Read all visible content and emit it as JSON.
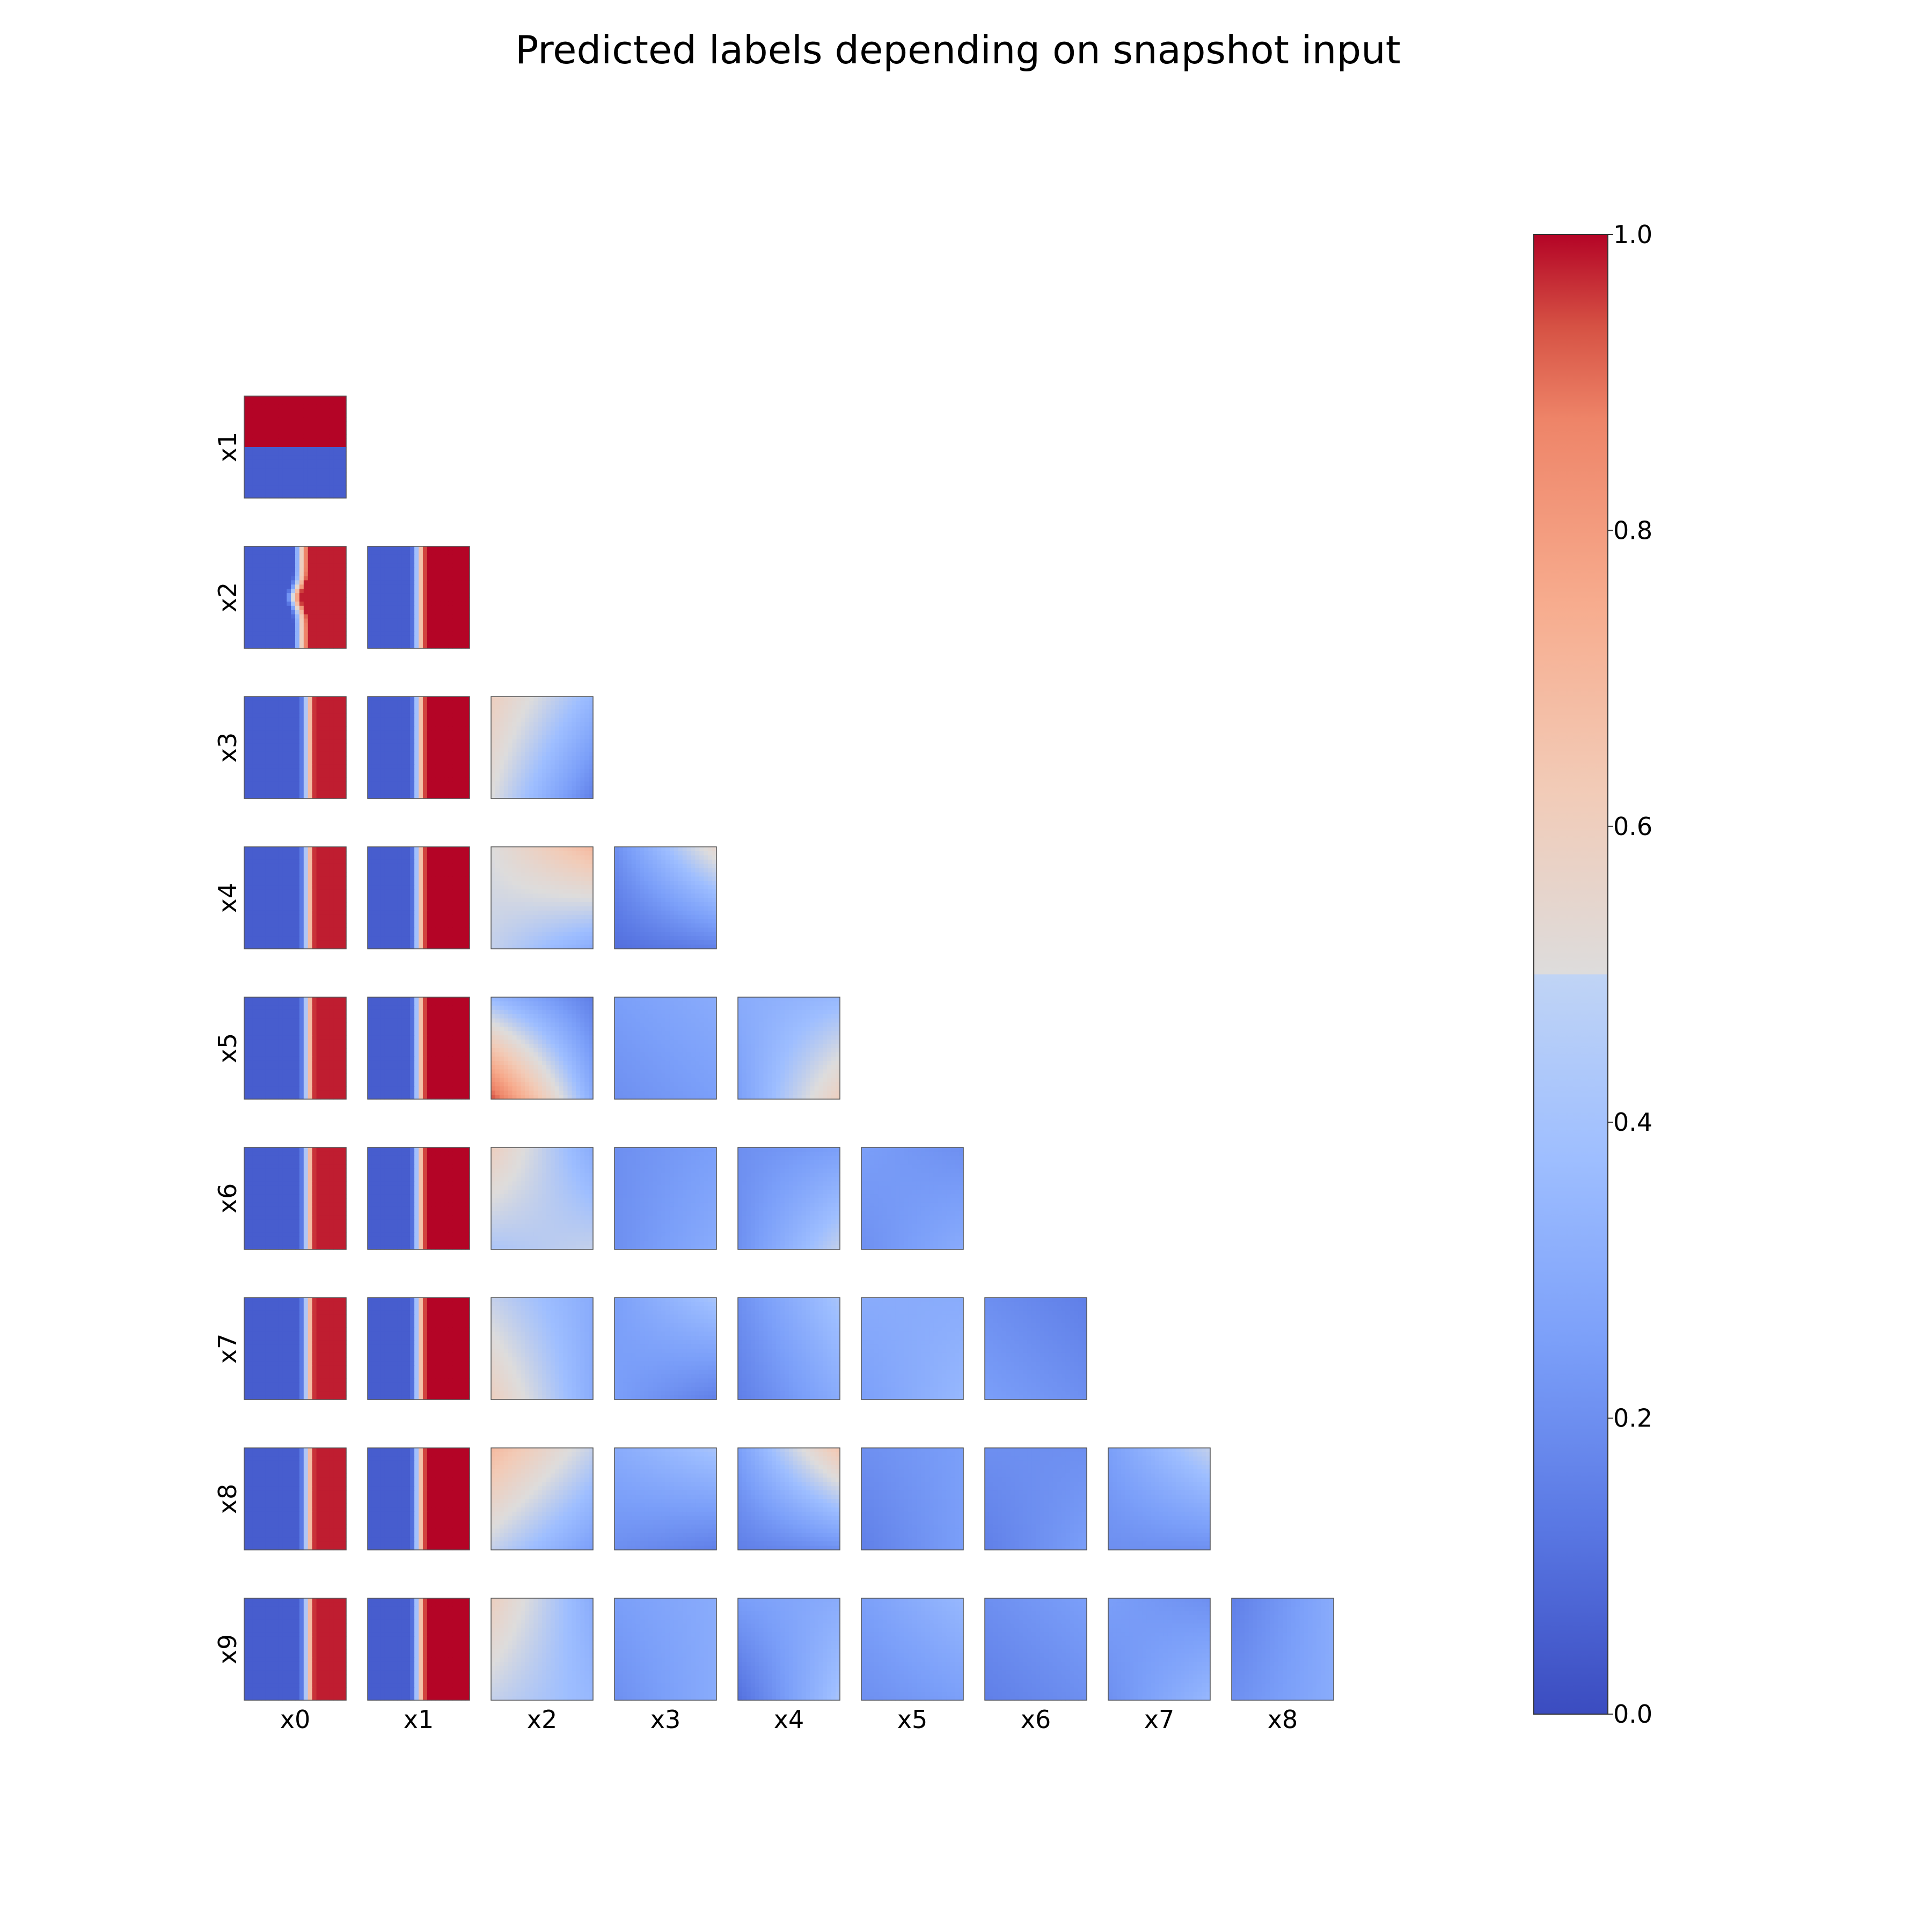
{
  "chart_data": {
    "type": "heatmap",
    "title": "Predicted labels depending on snapshot input",
    "layout": "lower-triangular pair grid",
    "colormap": "coolwarm",
    "colorbar": {
      "range": [
        0.0,
        1.0
      ],
      "ticks": [
        0.0,
        0.2,
        0.4,
        0.6,
        0.8,
        1.0
      ],
      "tick_labels": [
        "0.0",
        "0.2",
        "0.4",
        "0.6",
        "0.8",
        "1.0"
      ]
    },
    "row_labels": [
      "x1",
      "x2",
      "x3",
      "x4",
      "x5",
      "x6",
      "x7",
      "x8",
      "x9"
    ],
    "col_labels": [
      "x0",
      "x1",
      "x2",
      "x3",
      "x4",
      "x5",
      "x6",
      "x7",
      "x8"
    ],
    "panels": [
      {
        "row": "x1",
        "col": "x0",
        "pattern": "h-split",
        "split": 0.52,
        "low": 0.05,
        "high": 1.0
      },
      {
        "row": "x2",
        "col": "x0",
        "pattern": "v-split-bent",
        "split": 0.55,
        "low": 0.05,
        "high": 0.98
      },
      {
        "row": "x2",
        "col": "x1",
        "pattern": "v-split",
        "split": 0.5,
        "low": 0.05,
        "high": 1.0
      },
      {
        "row": "x3",
        "col": "x0",
        "pattern": "v-split",
        "split": 0.62,
        "low": 0.05,
        "high": 0.98
      },
      {
        "row": "x3",
        "col": "x1",
        "pattern": "v-split",
        "split": 0.5,
        "low": 0.05,
        "high": 1.0
      },
      {
        "row": "x3",
        "col": "x2",
        "pattern": "mixed",
        "tl": 0.6,
        "tr": 0.35,
        "bl": 0.5,
        "br": 0.15
      },
      {
        "row": "x4",
        "col": "x0",
        "pattern": "v-split",
        "split": 0.62,
        "low": 0.05,
        "high": 0.98
      },
      {
        "row": "x4",
        "col": "x1",
        "pattern": "v-split",
        "split": 0.5,
        "low": 0.05,
        "high": 1.0
      },
      {
        "row": "x4",
        "col": "x2",
        "pattern": "mixed",
        "tl": 0.5,
        "tr": 0.7,
        "bl": 0.45,
        "br": 0.3
      },
      {
        "row": "x4",
        "col": "x3",
        "pattern": "gradient",
        "tl": 0.2,
        "tr": 0.55,
        "bl": 0.1,
        "br": 0.15
      },
      {
        "row": "x5",
        "col": "x0",
        "pattern": "v-split",
        "split": 0.62,
        "low": 0.05,
        "high": 0.98
      },
      {
        "row": "x5",
        "col": "x1",
        "pattern": "v-split",
        "split": 0.5,
        "low": 0.05,
        "high": 1.0
      },
      {
        "row": "x5",
        "col": "x2",
        "pattern": "mixed",
        "tl": 0.35,
        "tr": 0.15,
        "bl": 0.95,
        "br": 0.3
      },
      {
        "row": "x5",
        "col": "x3",
        "pattern": "gradient",
        "tl": 0.25,
        "tr": 0.3,
        "bl": 0.2,
        "br": 0.25
      },
      {
        "row": "x5",
        "col": "x4",
        "pattern": "gradient",
        "tl": 0.3,
        "tr": 0.35,
        "bl": 0.25,
        "br": 0.6
      },
      {
        "row": "x6",
        "col": "x0",
        "pattern": "v-split",
        "split": 0.62,
        "low": 0.05,
        "high": 0.98
      },
      {
        "row": "x6",
        "col": "x1",
        "pattern": "v-split",
        "split": 0.5,
        "low": 0.05,
        "high": 1.0
      },
      {
        "row": "x6",
        "col": "x2",
        "pattern": "mixed",
        "tl": 0.6,
        "tr": 0.3,
        "bl": 0.4,
        "br": 0.45
      },
      {
        "row": "x6",
        "col": "x3",
        "pattern": "gradient",
        "tl": 0.2,
        "tr": 0.25,
        "bl": 0.2,
        "br": 0.3
      },
      {
        "row": "x6",
        "col": "x4",
        "pattern": "gradient",
        "tl": 0.2,
        "tr": 0.25,
        "bl": 0.2,
        "br": 0.45
      },
      {
        "row": "x6",
        "col": "x5",
        "pattern": "gradient",
        "tl": 0.25,
        "tr": 0.2,
        "bl": 0.2,
        "br": 0.3
      },
      {
        "row": "x7",
        "col": "x0",
        "pattern": "v-split",
        "split": 0.62,
        "low": 0.05,
        "high": 0.98
      },
      {
        "row": "x7",
        "col": "x1",
        "pattern": "v-split",
        "split": 0.5,
        "low": 0.05,
        "high": 1.0
      },
      {
        "row": "x7",
        "col": "x2",
        "pattern": "mixed",
        "tl": 0.45,
        "tr": 0.3,
        "bl": 0.6,
        "br": 0.3
      },
      {
        "row": "x7",
        "col": "x3",
        "pattern": "gradient",
        "tl": 0.25,
        "tr": 0.4,
        "bl": 0.25,
        "br": 0.15
      },
      {
        "row": "x7",
        "col": "x4",
        "pattern": "gradient",
        "tl": 0.2,
        "tr": 0.4,
        "bl": 0.15,
        "br": 0.3
      },
      {
        "row": "x7",
        "col": "x5",
        "pattern": "gradient",
        "tl": 0.3,
        "tr": 0.3,
        "bl": 0.25,
        "br": 0.35
      },
      {
        "row": "x7",
        "col": "x6",
        "pattern": "gradient",
        "tl": 0.2,
        "tr": 0.15,
        "bl": 0.25,
        "br": 0.2
      },
      {
        "row": "x8",
        "col": "x0",
        "pattern": "v-split",
        "split": 0.62,
        "low": 0.05,
        "high": 0.98
      },
      {
        "row": "x8",
        "col": "x1",
        "pattern": "v-split",
        "split": 0.5,
        "low": 0.05,
        "high": 1.0
      },
      {
        "row": "x8",
        "col": "x2",
        "pattern": "mixed",
        "tl": 0.7,
        "tr": 0.45,
        "bl": 0.45,
        "br": 0.25
      },
      {
        "row": "x8",
        "col": "x3",
        "pattern": "gradient",
        "tl": 0.3,
        "tr": 0.4,
        "bl": 0.2,
        "br": 0.15
      },
      {
        "row": "x8",
        "col": "x4",
        "pattern": "gradient",
        "tl": 0.25,
        "tr": 0.65,
        "bl": 0.15,
        "br": 0.2
      },
      {
        "row": "x8",
        "col": "x5",
        "pattern": "gradient",
        "tl": 0.2,
        "tr": 0.25,
        "bl": 0.15,
        "br": 0.25
      },
      {
        "row": "x8",
        "col": "x6",
        "pattern": "gradient",
        "tl": 0.2,
        "tr": 0.2,
        "bl": 0.15,
        "br": 0.25
      },
      {
        "row": "x8",
        "col": "x7",
        "pattern": "gradient",
        "tl": 0.25,
        "tr": 0.45,
        "bl": 0.2,
        "br": 0.2
      },
      {
        "row": "x9",
        "col": "x0",
        "pattern": "v-split",
        "split": 0.62,
        "low": 0.05,
        "high": 0.98
      },
      {
        "row": "x9",
        "col": "x1",
        "pattern": "v-split",
        "split": 0.5,
        "low": 0.05,
        "high": 1.0
      },
      {
        "row": "x9",
        "col": "x2",
        "pattern": "mixed",
        "tl": 0.6,
        "tr": 0.3,
        "bl": 0.45,
        "br": 0.35
      },
      {
        "row": "x9",
        "col": "x3",
        "pattern": "gradient",
        "tl": 0.25,
        "tr": 0.3,
        "bl": 0.2,
        "br": 0.3
      },
      {
        "row": "x9",
        "col": "x4",
        "pattern": "gradient",
        "tl": 0.25,
        "tr": 0.3,
        "bl": 0.1,
        "br": 0.4
      },
      {
        "row": "x9",
        "col": "x5",
        "pattern": "gradient",
        "tl": 0.25,
        "tr": 0.35,
        "bl": 0.2,
        "br": 0.25
      },
      {
        "row": "x9",
        "col": "x6",
        "pattern": "gradient",
        "tl": 0.2,
        "tr": 0.25,
        "bl": 0.15,
        "br": 0.2
      },
      {
        "row": "x9",
        "col": "x7",
        "pattern": "gradient",
        "tl": 0.25,
        "tr": 0.2,
        "bl": 0.2,
        "br": 0.35
      },
      {
        "row": "x9",
        "col": "x8",
        "pattern": "gradient",
        "tl": 0.15,
        "tr": 0.3,
        "bl": 0.2,
        "br": 0.3
      }
    ]
  }
}
